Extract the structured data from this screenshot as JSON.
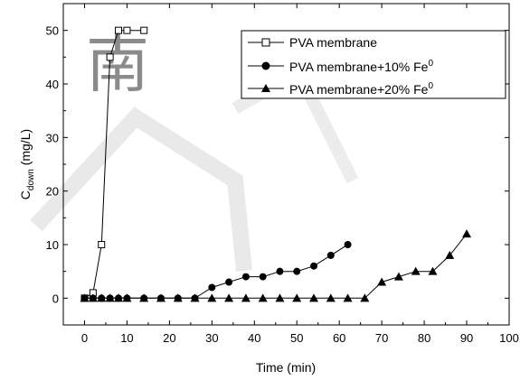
{
  "chart_data": {
    "type": "scatter",
    "xlabel": "Time (min)",
    "ylabel": {
      "main": "C",
      "sub": "down",
      "unit": " (mg/L)"
    },
    "xlim": [
      -5,
      100
    ],
    "ylim": [
      -5,
      55
    ],
    "xticks": [
      0,
      10,
      20,
      30,
      40,
      50,
      60,
      70,
      80,
      90,
      100
    ],
    "yticks": [
      0,
      10,
      20,
      30,
      40,
      50
    ],
    "grid": false,
    "legend_position": "top-right",
    "series": [
      {
        "name": "PVA membrane",
        "marker": "open-square",
        "x": [
          0,
          2,
          4,
          6,
          8,
          10,
          14
        ],
        "y": [
          0,
          1,
          10,
          45,
          50,
          50,
          50
        ]
      },
      {
        "name": {
          "main": "PVA membrane+10% Fe",
          "sup": "0"
        },
        "marker": "filled-circle",
        "x": [
          0,
          2,
          4,
          6,
          8,
          10,
          14,
          18,
          22,
          26,
          30,
          34,
          38,
          42,
          46,
          50,
          54,
          58,
          62
        ],
        "y": [
          0,
          0,
          0,
          0,
          0,
          0,
          0,
          0,
          0,
          0,
          2,
          3,
          4,
          4,
          5,
          5,
          6,
          8,
          10
        ]
      },
      {
        "name": {
          "main": "PVA membrane+20% Fe",
          "sup": "0"
        },
        "marker": "filled-triangle",
        "x": [
          0,
          2,
          4,
          6,
          8,
          10,
          14,
          18,
          22,
          26,
          30,
          34,
          38,
          42,
          46,
          50,
          54,
          58,
          62,
          66,
          70,
          74,
          78,
          82,
          86,
          90
        ],
        "y": [
          0,
          0,
          0,
          0,
          0,
          0,
          0,
          0,
          0,
          0,
          0,
          0,
          0,
          0,
          0,
          0,
          0,
          0,
          0,
          0,
          3,
          4,
          5,
          5,
          8,
          12
        ]
      }
    ]
  },
  "watermark": {
    "glyph": "南"
  },
  "colors": {
    "axis": "#000000",
    "series": "#000000",
    "watermark": "#d8d8d8"
  }
}
